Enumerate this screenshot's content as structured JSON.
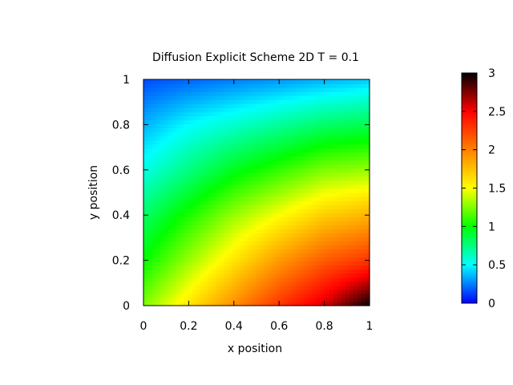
{
  "chart_data": {
    "type": "heatmap",
    "title": "Diffusion Explicit Scheme 2D T = 0.1",
    "xlabel": "x position",
    "ylabel": "y position",
    "xlim": [
      0,
      1
    ],
    "ylim": [
      0,
      1
    ],
    "xticks": [
      0,
      0.2,
      0.4,
      0.6,
      0.8,
      1
    ],
    "xtick_labels": [
      "0",
      "0.2",
      "0.4",
      "0.6",
      "0.8",
      "1"
    ],
    "yticks": [
      0,
      0.2,
      0.4,
      0.6,
      0.8,
      1
    ],
    "ytick_labels": [
      "0",
      "0.2",
      "0.4",
      "0.6",
      "0.8",
      "1"
    ],
    "colorbar": {
      "range": [
        0,
        3
      ],
      "ticks": [
        0,
        0.5,
        1,
        1.5,
        2,
        2.5,
        3
      ],
      "tick_labels": [
        "0",
        "0.5",
        "1",
        "1.5",
        "2",
        "2.5",
        "3"
      ]
    },
    "grid": false,
    "colormap": [
      "#0000ff",
      "#00ffff",
      "#00ff00",
      "#ffff00",
      "#ff8000",
      "#ff0000",
      "#000000"
    ],
    "sample_grid": {
      "x": [
        0,
        0.2,
        0.4,
        0.6,
        0.8,
        1
      ],
      "y": [
        0,
        0.2,
        0.4,
        0.6,
        0.8,
        1
      ],
      "values": [
        [
          1.25,
          1.6,
          1.95,
          2.3,
          2.6,
          3.0
        ],
        [
          1.0,
          1.3,
          1.6,
          1.9,
          2.15,
          2.3
        ],
        [
          0.8,
          1.05,
          1.3,
          1.5,
          1.7,
          1.8
        ],
        [
          0.55,
          0.75,
          0.95,
          1.1,
          1.25,
          1.3
        ],
        [
          0.35,
          0.5,
          0.6,
          0.7,
          0.8,
          0.85
        ],
        [
          0.15,
          0.2,
          0.25,
          0.3,
          0.35,
          0.4
        ]
      ]
    }
  }
}
